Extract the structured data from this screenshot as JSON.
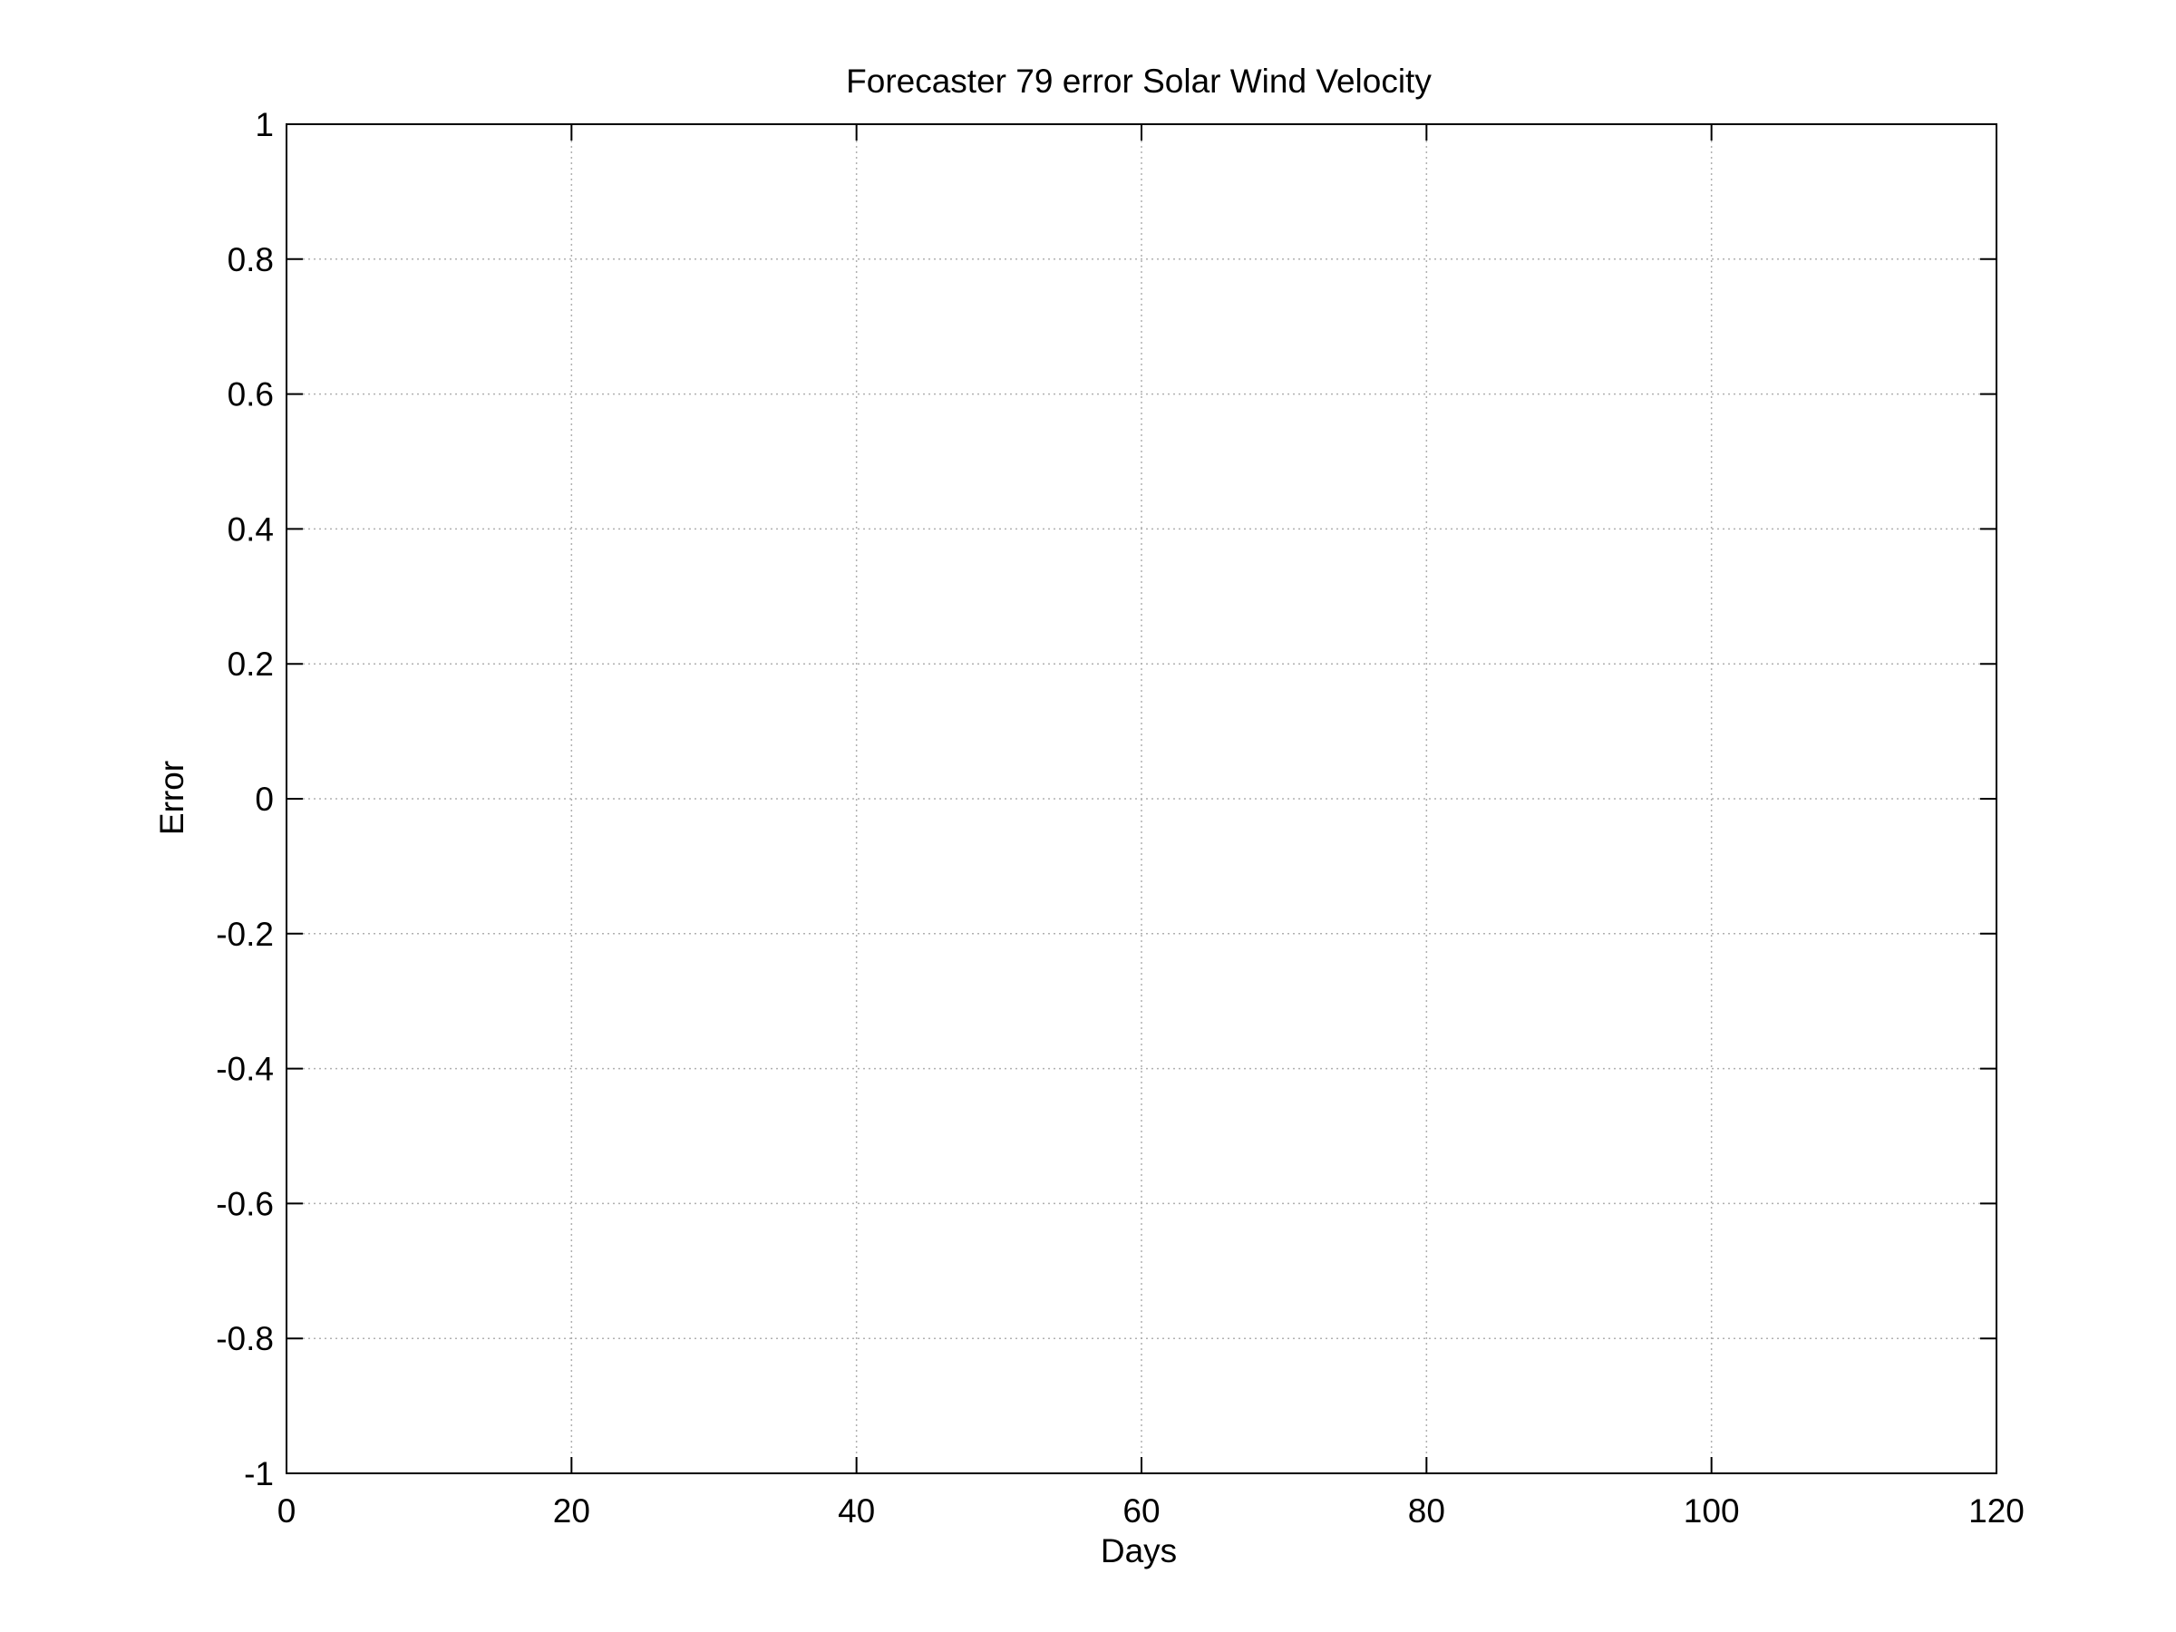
{
  "chart_data": {
    "type": "line",
    "title": "Forecaster 79 error  Solar Wind Velocity",
    "xlabel": "Days",
    "ylabel": "Error",
    "xlim": [
      0,
      120
    ],
    "ylim": [
      -1,
      1
    ],
    "xticks": [
      0,
      20,
      40,
      60,
      80,
      100,
      120
    ],
    "yticks": [
      -1,
      -0.8,
      -0.6,
      -0.4,
      -0.2,
      0,
      0.2,
      0.4,
      0.6,
      0.8,
      1
    ],
    "xtick_labels": [
      "0",
      "20",
      "40",
      "60",
      "80",
      "100",
      "120"
    ],
    "ytick_labels": [
      "-1",
      "-0.8",
      "-0.6",
      "-0.4",
      "-0.2",
      "0",
      "0.2",
      "0.4",
      "0.6",
      "0.8",
      "1"
    ],
    "grid": true,
    "series": []
  },
  "colors": {
    "axis": "#000000",
    "grid": "#b0b0b0",
    "background": "#ffffff"
  }
}
